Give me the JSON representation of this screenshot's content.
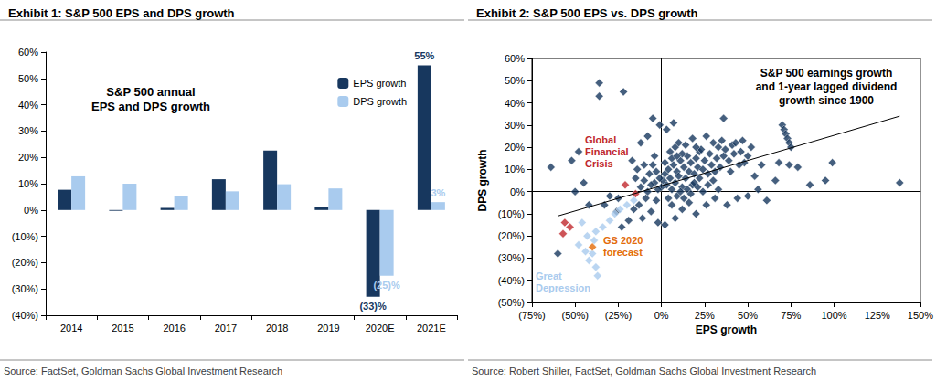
{
  "chart_data": [
    {
      "type": "bar",
      "title": "Exhibit 1: S&P 500 EPS and DPS growth",
      "annotation": "S&P 500 annual\nEPS and DPS growth",
      "source": "Source: FactSet, Goldman Sachs Global Investment Research",
      "categories": [
        "2014",
        "2015",
        "2016",
        "2017",
        "2018",
        "2019",
        "2020E",
        "2021E"
      ],
      "series": [
        {
          "name": "EPS growth",
          "color": "#17375e",
          "values": [
            7.7,
            -0.3,
            0.8,
            11.7,
            22.6,
            1.0,
            -33,
            55
          ],
          "value_labels": [
            null,
            null,
            null,
            null,
            null,
            null,
            "(33)%",
            "55%"
          ]
        },
        {
          "name": "DPS growth",
          "color": "#a9cbee",
          "values": [
            12.8,
            10.0,
            5.3,
            7.1,
            9.8,
            8.2,
            -25,
            3
          ],
          "value_labels": [
            null,
            null,
            null,
            null,
            null,
            null,
            "(25)%",
            "3%"
          ]
        }
      ],
      "ylim": [
        -40,
        60
      ],
      "yticks": [
        {
          "value": -40,
          "label": "(40%)"
        },
        {
          "value": -30,
          "label": "(30%)"
        },
        {
          "value": -20,
          "label": "(20%)"
        },
        {
          "value": -10,
          "label": "(10%)"
        },
        {
          "value": 0,
          "label": "0%"
        },
        {
          "value": 10,
          "label": "10%"
        },
        {
          "value": 20,
          "label": "20%"
        },
        {
          "value": 30,
          "label": "30%"
        },
        {
          "value": 40,
          "label": "40%"
        },
        {
          "value": 50,
          "label": "50%"
        },
        {
          "value": 60,
          "label": "60%"
        }
      ],
      "grid": false,
      "legend": "upper right"
    },
    {
      "type": "scatter",
      "title": "Exhibit 2: S&P 500 EPS vs. DPS growth",
      "annotation": "S&P 500 earnings growth\nand 1-year lagged dividend\ngrowth since 1900",
      "source": "Source: Robert Shiller, FactSet, Goldman Sachs Global Investment Research",
      "x_label": "EPS growth",
      "y_label": "DPS growth",
      "xlim": [
        -75,
        150
      ],
      "xticks": [
        {
          "value": -75,
          "label": "(75%)"
        },
        {
          "value": -50,
          "label": "(50%)"
        },
        {
          "value": -25,
          "label": "(25%)"
        },
        {
          "value": 0,
          "label": "0%"
        },
        {
          "value": 25,
          "label": "25%"
        },
        {
          "value": 50,
          "label": "50%"
        },
        {
          "value": 75,
          "label": "75%"
        },
        {
          "value": 100,
          "label": "100%"
        },
        {
          "value": 125,
          "label": "125%"
        },
        {
          "value": 150,
          "label": "150%"
        }
      ],
      "ylim": [
        -50,
        60
      ],
      "yticks": [
        {
          "value": -50,
          "label": "(50%)"
        },
        {
          "value": -40,
          "label": "(40%)"
        },
        {
          "value": -30,
          "label": "(30%)"
        },
        {
          "value": -20,
          "label": "(20%)"
        },
        {
          "value": -10,
          "label": "(10%)"
        },
        {
          "value": 0,
          "label": "0%"
        },
        {
          "value": 10,
          "label": "10%"
        },
        {
          "value": 20,
          "label": "20%"
        },
        {
          "value": 30,
          "label": "30%"
        },
        {
          "value": 40,
          "label": "40%"
        },
        {
          "value": 50,
          "label": "50%"
        },
        {
          "value": 60,
          "label": "60%"
        }
      ],
      "grid": false,
      "series": [
        {
          "type": "scatter",
          "color": "#17375e",
          "marker": "diamond",
          "x": [
            -36,
            -36,
            -22,
            -64,
            -52,
            -48,
            -60,
            -50,
            -45,
            -42,
            -30,
            -26,
            -12,
            -8,
            -5,
            -1,
            3,
            7,
            -14,
            -10,
            -7,
            -4,
            -3,
            -6,
            -9,
            -11,
            -13,
            -2,
            2,
            8,
            12,
            16,
            20,
            26,
            31,
            38,
            44,
            50,
            56,
            61,
            66,
            70,
            71,
            72,
            73,
            74,
            75,
            68,
            74,
            79,
            86,
            95,
            99,
            138,
            46,
            41,
            36,
            54,
            48,
            58,
            35,
            30,
            26,
            22,
            0,
            1,
            2,
            3,
            4,
            5,
            6,
            7,
            8,
            9,
            10,
            11,
            12,
            13,
            14,
            15,
            16,
            17,
            18,
            19,
            20,
            21,
            22,
            23,
            24,
            25,
            27,
            28,
            29,
            31,
            32,
            33,
            34,
            36,
            37,
            39,
            40,
            42,
            43,
            45,
            47,
            50,
            52,
            -1,
            -2,
            -3,
            -4,
            -5,
            -6,
            -8,
            -10,
            -12,
            -15,
            -17,
            5,
            8,
            10,
            12,
            14,
            18,
            20,
            4,
            6,
            9,
            11,
            13,
            15,
            17,
            19,
            21,
            24,
            27,
            30,
            33,
            2,
            6,
            9,
            -16,
            -19,
            -23,
            -25,
            -33
          ],
          "values": [
            49,
            43,
            45,
            11,
            14,
            18,
            -28,
            0,
            4,
            -6,
            -2,
            -9,
            22,
            25,
            33,
            30,
            28,
            31,
            10,
            12,
            8,
            16,
            -4,
            -9,
            -3,
            -12,
            -6,
            -14,
            -15,
            -12,
            -8,
            -5,
            -10,
            -6,
            -3,
            -6,
            -3,
            -2,
            1,
            -4,
            5,
            30,
            28,
            26,
            24,
            22,
            20,
            13,
            12,
            11,
            3,
            5,
            13,
            4,
            18,
            21,
            33,
            7,
            13,
            12,
            23,
            22,
            25,
            18,
            2,
            5,
            8,
            3,
            10,
            6,
            1,
            12,
            4,
            9,
            7,
            14,
            2,
            11,
            6,
            16,
            9,
            13,
            3,
            8,
            15,
            11,
            6,
            19,
            10,
            14,
            8,
            17,
            12,
            9,
            15,
            20,
            11,
            16,
            19,
            14,
            9,
            17,
            22,
            12,
            23,
            16,
            20,
            6,
            1,
            9,
            4,
            12,
            3,
            0,
            5,
            2,
            6,
            14,
            18,
            20,
            22,
            17,
            21,
            24,
            20,
            -3,
            -6,
            -2,
            0,
            -3,
            1,
            -1,
            4,
            2,
            0,
            3,
            5,
            1,
            13,
            15,
            16,
            -8,
            -13,
            -16,
            -3,
            -6
          ]
        },
        {
          "type": "scatter",
          "name": "Global\nFinancial\nCrisis",
          "color": "#c0282d",
          "marker": "diamond",
          "x": [
            -56,
            -57,
            -53,
            -21,
            -15
          ],
          "values": [
            -14,
            -19,
            -16,
            3,
            -1
          ]
        },
        {
          "type": "scatter",
          "name": "Great\nDepression",
          "color": "#a9cbee",
          "marker": "diamond",
          "x": [
            -37,
            -38,
            -42,
            -40,
            -44,
            -39,
            -43,
            -38,
            -34,
            -30,
            -27,
            -24,
            -20,
            -16,
            -48,
            -46
          ],
          "values": [
            -38,
            -34,
            -31,
            -28,
            -27,
            -22,
            -20,
            -18,
            -16,
            -13,
            -10,
            -8,
            -6,
            -4,
            -24,
            -14
          ]
        },
        {
          "type": "scatter",
          "name": "GS 2020\nforecast",
          "color": "#e36c09",
          "marker": "diamond",
          "x": [
            -40
          ],
          "values": [
            -25
          ]
        },
        {
          "type": "line",
          "color": "#000000",
          "line_style": "solid",
          "x": [
            -60,
            138
          ],
          "values": [
            -11,
            34
          ]
        }
      ]
    }
  ]
}
